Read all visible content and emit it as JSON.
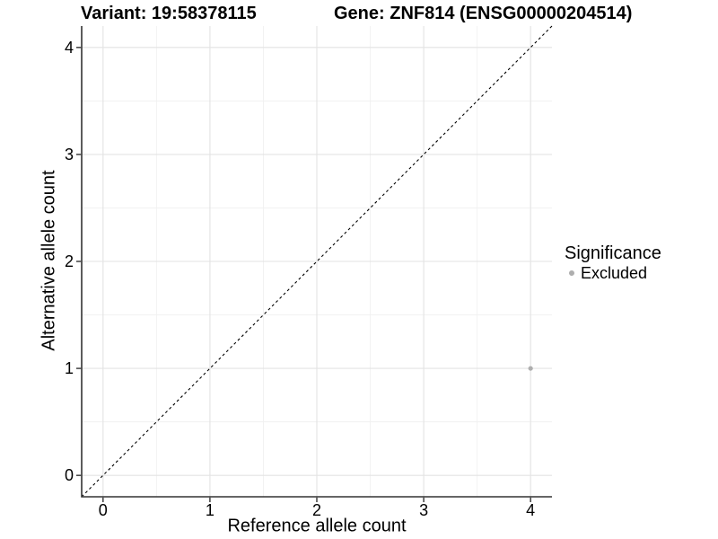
{
  "header": {
    "variant_title": "Variant: 19:58378115",
    "gene_title": "Gene: ZNF814 (ENSG00000204514)"
  },
  "axes": {
    "x_label": "Reference allele count",
    "y_label": "Alternative allele count"
  },
  "legend": {
    "title": "Significance",
    "items": [
      {
        "label": "Excluded",
        "color": "#aeaeae"
      }
    ]
  },
  "chart_data": {
    "type": "scatter",
    "title": "Variant: 19:58378115 / Gene: ZNF814 (ENSG00000204514)",
    "xlabel": "Reference allele count",
    "ylabel": "Alternative allele count",
    "xlim": [
      -0.2,
      4.2
    ],
    "ylim": [
      -0.2,
      4.2
    ],
    "x_ticks": [
      0,
      1,
      2,
      3,
      4
    ],
    "y_ticks": [
      0,
      1,
      2,
      3,
      4
    ],
    "grid": "major and minor gridlines, light gray on white panel",
    "legend_position": "right",
    "series": [
      {
        "name": "Excluded",
        "color": "#aeaeae",
        "marker": "circle",
        "points": [
          {
            "x": 4,
            "y": 1
          }
        ]
      }
    ],
    "reference_line": {
      "type": "identity y=x",
      "style": "dashed",
      "color": "#000000"
    }
  },
  "colors": {
    "background": "#ffffff",
    "axis_line": "#333333",
    "grid_major": "#e3e3e3",
    "grid_minor": "#f1f1f1",
    "point": "#aeaeae",
    "text": "#000000"
  }
}
